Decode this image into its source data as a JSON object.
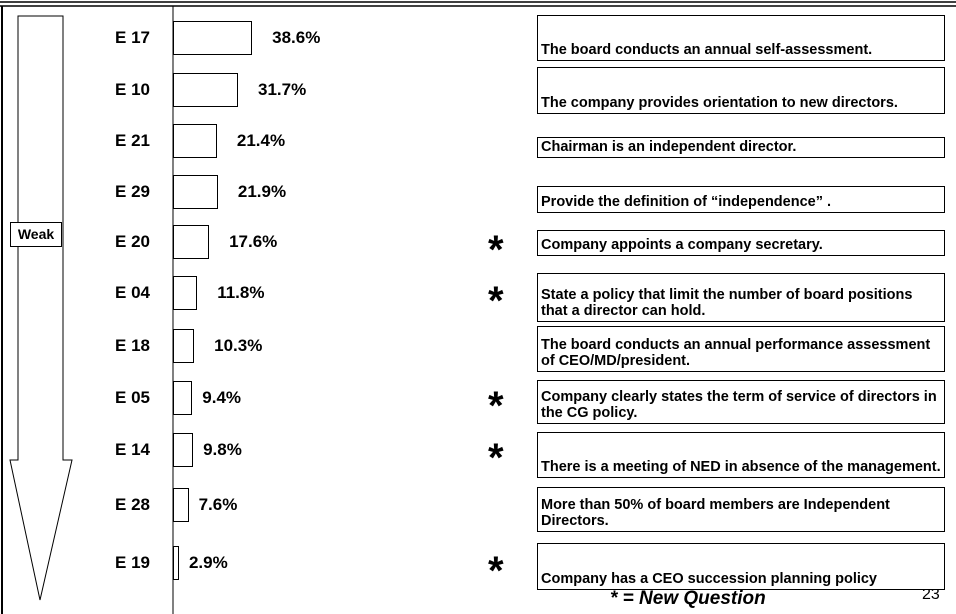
{
  "chart_data": {
    "type": "bar",
    "side_label": "Weak",
    "categories": [
      "E 17",
      "E 10",
      "E 21",
      "E 29",
      "E 20",
      "E 04",
      "E 18",
      "E 05",
      "E 14",
      "E 28",
      "E 19"
    ],
    "values": [
      38.6,
      31.7,
      21.4,
      21.9,
      17.6,
      11.8,
      10.3,
      9.4,
      9.8,
      7.6,
      2.9
    ],
    "value_labels": [
      "38.6%",
      "31.7%",
      "21.4%",
      "21.9%",
      "17.6%",
      "11.8%",
      "10.3%",
      "9.4%",
      "9.8%",
      "7.6%",
      "2.9%"
    ],
    "descriptions": [
      "The board conducts an annual self-assessment.",
      "The company provides orientation to new directors.",
      "Chairman is an independent director.",
      "Provide the definition of “independence” .",
      "Company appoints a company secretary.",
      "State a policy that limit the number of board positions that a director can hold.",
      "The board conducts an annual performance assessment of CEO/MD/president.",
      "Company clearly states the  term of service of directors in the CG policy.",
      "There is a meeting of NED in absence of the management.",
      "More than 50% of board members are Independent Directors.",
      "Company has a CEO succession planning policy"
    ],
    "markers": [
      null,
      null,
      null,
      null,
      "*",
      "*",
      null,
      "*",
      "*",
      null,
      "*"
    ],
    "legend": "* = New Question",
    "page_number": "23"
  }
}
